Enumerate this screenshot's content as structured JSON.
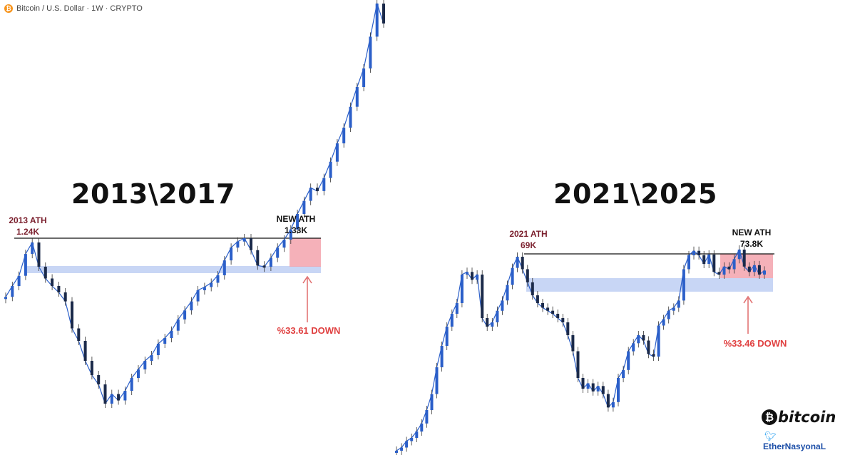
{
  "header": {
    "symbol_label": "Bitcoin / U.S. Dollar · 1W · CRYPTO",
    "symbol_icon": "bitcoin-icon"
  },
  "colors": {
    "candle": "#2b5fc9",
    "ath_line": "#111111",
    "support_zone": "#c8d6f5",
    "red_zone": "#f3a3ad",
    "arrow": "#e06b6b",
    "down_label": "#e04040",
    "ath_label": "#7a1e2c"
  },
  "chart_data": [
    {
      "type": "candlestick",
      "title": "2013\\2017",
      "series": [
        {
          "values": [
            620,
            760,
            950,
            1150,
            1240,
            1050,
            900,
            760,
            640,
            600,
            480,
            430,
            360,
            310,
            280,
            220,
            250,
            230,
            260,
            300,
            330,
            360,
            380,
            420,
            440,
            470,
            520,
            560,
            600,
            680,
            740,
            820,
            960,
            1100,
            1200,
            1260,
            1330,
            1180,
            1060,
            1050,
            1120,
            1200,
            1300,
            1500,
            1800,
            2200,
            2600,
            2500,
            2900,
            3500,
            4200,
            4800,
            5600,
            6200,
            6600,
            7200,
            7700,
            7400
          ]
        }
      ],
      "annotations": {
        "previous_ath": {
          "label": "2013 ATH",
          "value_label": "1.24K",
          "value": 1240
        },
        "new_ath": {
          "label": "NEW ATH",
          "value_label": "1.33K",
          "value": 1330
        },
        "drawdown": {
          "label": "%33.61 DOWN",
          "percent": 33.61
        }
      }
    },
    {
      "type": "candlestick",
      "title": "2021\\2025",
      "series": [
        {
          "values": [
            9000,
            9500,
            10500,
            11000,
            12000,
            13500,
            16000,
            19000,
            24000,
            28000,
            34000,
            40000,
            47000,
            58000,
            60000,
            56000,
            58000,
            38000,
            34000,
            36000,
            42000,
            48000,
            54000,
            63000,
            69000,
            62000,
            55000,
            50000,
            47000,
            44000,
            42000,
            40000,
            38000,
            36000,
            30000,
            27000,
            22000,
            20000,
            21000,
            19500,
            20500,
            19000,
            16500,
            17500,
            22000,
            23500,
            27000,
            28500,
            30000,
            29000,
            26500,
            26000,
            34500,
            37500,
            42000,
            44000,
            48000,
            62000,
            70000,
            73000,
            70000,
            66000,
            70500,
            60000,
            58000,
            64000,
            62000,
            68000,
            73800,
            64000,
            60000,
            65000,
            58000,
            61000
          ]
        }
      ],
      "annotations": {
        "previous_ath": {
          "label": "2021 ATH",
          "value_label": "69K",
          "value": 69000
        },
        "new_ath": {
          "label": "NEW ATH",
          "value_label": "73.8K",
          "value": 73800
        },
        "drawdown": {
          "label": "%33.46 DOWN",
          "percent": 33.46
        }
      }
    }
  ],
  "branding": {
    "logo_text": "bitcoin",
    "logo_icon": "bitcoin-icon",
    "watermark_text": "EtherNasyonaL",
    "watermark_icon": "twitter-bird-icon"
  }
}
